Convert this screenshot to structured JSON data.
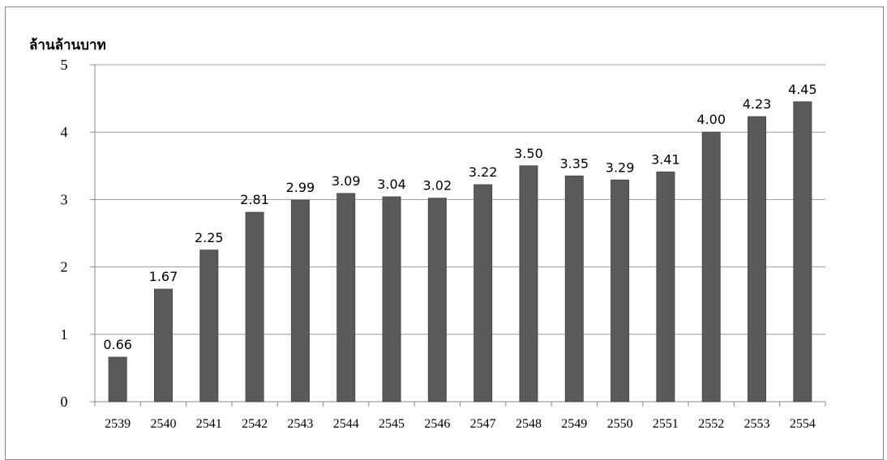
{
  "chart_data": {
    "type": "bar",
    "ylabel": "ล้านล้านบาท",
    "ylim": [
      0,
      5
    ],
    "yticks": [
      "0",
      "1",
      "2",
      "3",
      "4",
      "5"
    ],
    "categories": [
      "2539",
      "2540",
      "2541",
      "2542",
      "2543",
      "2544",
      "2545",
      "2546",
      "2547",
      "2548",
      "2549",
      "2550",
      "2551",
      "2552",
      "2553",
      "2554"
    ],
    "values": [
      0.66,
      1.67,
      2.25,
      2.81,
      2.99,
      3.09,
      3.04,
      3.02,
      3.22,
      3.5,
      3.35,
      3.29,
      3.41,
      4.0,
      4.23,
      4.45
    ],
    "data_labels": [
      "0.66",
      "1.67",
      "2.25",
      "2.81",
      "2.99",
      "3.09",
      "3.04",
      "3.02",
      "3.22",
      "3.50",
      "3.35",
      "3.29",
      "3.41",
      "4.00",
      "4.23",
      "4.45"
    ],
    "grid": true,
    "legend": "none",
    "colors": {
      "bar": "#5a5a5a",
      "grid": "#9a9a9a"
    }
  }
}
